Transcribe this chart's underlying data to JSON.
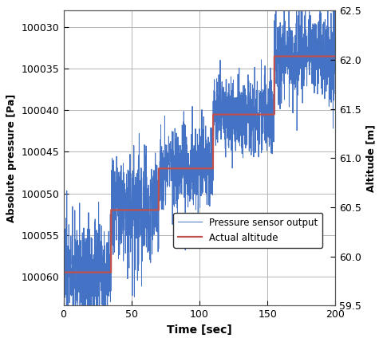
{
  "title": "",
  "xlabel": "Time [sec]",
  "ylabel_left": "Absolute pressure [Pa]",
  "ylabel_right": "Altitude [m]",
  "xlim": [
    0,
    200
  ],
  "ylim_left_bottom": 100063.5,
  "ylim_left_top": 100028.0,
  "ylim_right": [
    59.5,
    62.5
  ],
  "yticks_left": [
    100030,
    100035,
    100040,
    100045,
    100050,
    100055,
    100060
  ],
  "yticks_right": [
    59.5,
    60.0,
    60.5,
    61.0,
    61.5,
    62.0,
    62.5
  ],
  "xticks": [
    0,
    50,
    100,
    150,
    200
  ],
  "pressure_color": "#4472C4",
  "altitude_color": "#C0504D",
  "legend_labels": [
    "Pressure sensor output",
    "Actual altitude"
  ],
  "background_color": "#FFFFFF",
  "grid_color": "#AAAAAA",
  "noise_amplitude": 2.5,
  "breakpoints": [
    [
      0,
      35,
      100059.5
    ],
    [
      35,
      70,
      100052.0
    ],
    [
      70,
      110,
      100047.0
    ],
    [
      110,
      155,
      100040.5
    ],
    [
      155,
      201,
      100033.5
    ]
  ]
}
